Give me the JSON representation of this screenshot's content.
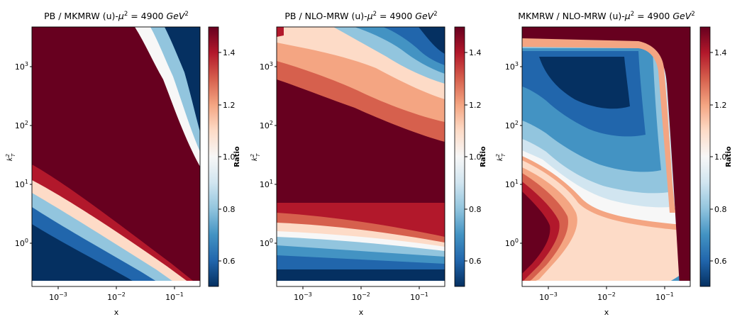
{
  "figure": {
    "colormap": "RdBu_r"
  },
  "chart_data": [
    {
      "type": "heatmap",
      "title_main": "PB / MKMRW (u)-",
      "title_mu": "μ",
      "title_sup": "2",
      "title_eq": " = 4900 ",
      "title_unit": "GeV",
      "title_unit_sup": "2",
      "xlabel": "x",
      "ylabel_base": "k",
      "ylabel_sub": "T",
      "ylabel_sup": "2",
      "x_scale": "log",
      "y_scale": "log",
      "xlim": [
        0.0003,
        0.35
      ],
      "ylim": [
        0.2,
        5000
      ],
      "xticks": [
        {
          "base": "10",
          "exp": "−3",
          "value": 0.001
        },
        {
          "base": "10",
          "exp": "−2",
          "value": 0.01
        },
        {
          "base": "10",
          "exp": "−1",
          "value": 0.1
        }
      ],
      "yticks": [
        {
          "base": "10",
          "exp": "0",
          "value": 1
        },
        {
          "base": "10",
          "exp": "1",
          "value": 10
        },
        {
          "base": "10",
          "exp": "2",
          "value": 100
        },
        {
          "base": "10",
          "exp": "3",
          "value": 1000
        }
      ],
      "colorbar": {
        "label": "Ratio",
        "range": [
          0.5,
          1.5
        ],
        "ticks": [
          "0.6",
          "0.8",
          "1.0",
          "1.2",
          "1.4"
        ],
        "tick_values": [
          0.6,
          0.8,
          1.0,
          1.2,
          1.4
        ]
      },
      "ratio_description": "upper-right blue band above a diagonal white ridge; large saturated-red middle region; blue in lower-left below a second diagonal ridge"
    },
    {
      "type": "heatmap",
      "title_main": "PB / NLO-MRW (u)-",
      "title_mu": "μ",
      "title_sup": "2",
      "title_eq": " = 4900 ",
      "title_unit": "GeV",
      "title_unit_sup": "2",
      "xlabel": "x",
      "ylabel_base": "k",
      "ylabel_sub": "T",
      "ylabel_sup": "2",
      "x_scale": "log",
      "y_scale": "log",
      "xlim": [
        0.0003,
        0.35
      ],
      "ylim": [
        0.2,
        5000
      ],
      "xticks": [
        {
          "base": "10",
          "exp": "−3",
          "value": 0.001
        },
        {
          "base": "10",
          "exp": "−2",
          "value": 0.01
        },
        {
          "base": "10",
          "exp": "−1",
          "value": 0.1
        }
      ],
      "yticks": [
        {
          "base": "10",
          "exp": "0",
          "value": 1
        },
        {
          "base": "10",
          "exp": "1",
          "value": 10
        },
        {
          "base": "10",
          "exp": "2",
          "value": 100
        },
        {
          "base": "10",
          "exp": "3",
          "value": 1000
        }
      ],
      "colorbar": {
        "label": "Ratio",
        "range": [
          0.5,
          1.5
        ],
        "ticks": [
          "0.6",
          "0.8",
          "1.0",
          "1.2",
          "1.4"
        ],
        "tick_values": [
          0.6,
          0.8,
          1.0,
          1.2,
          1.4
        ]
      },
      "ratio_description": "blue top-right lobe, orange bands, dark-red middle plateau, blue horizontal bands at low kT"
    },
    {
      "type": "heatmap",
      "title_main": "MKMRW / NLO-MRW (u)-",
      "title_mu": "μ",
      "title_sup": "2",
      "title_eq": " = 4900 ",
      "title_unit": "GeV",
      "title_unit_sup": "2",
      "xlabel": "x",
      "ylabel_base": "k",
      "ylabel_sub": "T",
      "ylabel_sup": "2",
      "x_scale": "log",
      "y_scale": "log",
      "xlim": [
        0.0003,
        0.35
      ],
      "ylim": [
        0.2,
        5000
      ],
      "xticks": [
        {
          "base": "10",
          "exp": "−3",
          "value": 0.001
        },
        {
          "base": "10",
          "exp": "−2",
          "value": 0.01
        },
        {
          "base": "10",
          "exp": "−1",
          "value": 0.1
        }
      ],
      "yticks": [
        {
          "base": "10",
          "exp": "0",
          "value": 1
        },
        {
          "base": "10",
          "exp": "1",
          "value": 10
        },
        {
          "base": "10",
          "exp": "2",
          "value": 100
        },
        {
          "base": "10",
          "exp": "3",
          "value": 1000
        }
      ],
      "colorbar": {
        "label": "Ratio",
        "range": [
          0.5,
          1.5
        ],
        "ticks": [
          "0.6",
          "0.8",
          "1.0",
          "1.2",
          "1.4"
        ],
        "tick_values": [
          0.6,
          0.8,
          1.0,
          1.2,
          1.4
        ]
      },
      "ratio_description": "large blue region bounded by red strips at top and right; lower-left red wedge; near-white band from lower-right"
    }
  ]
}
